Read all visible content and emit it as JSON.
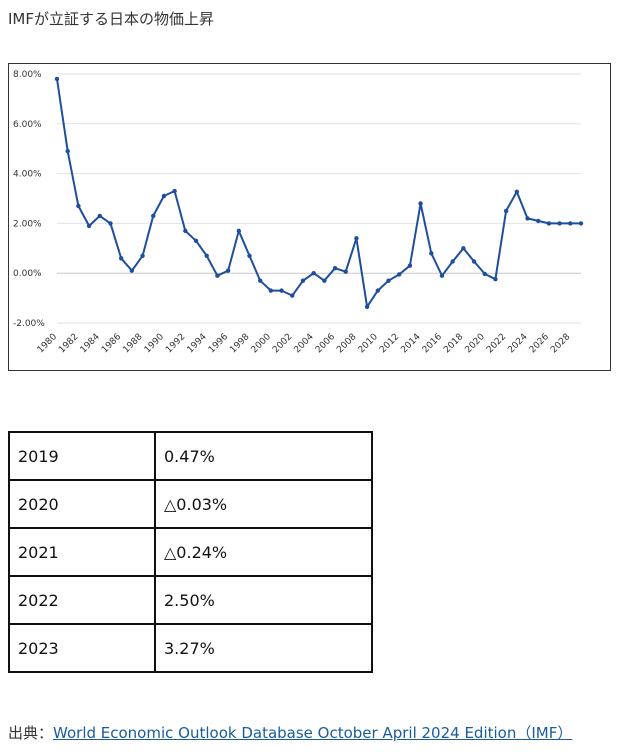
{
  "heading": "IMFが立証する日本の物価上昇",
  "chart_data": {
    "type": "line",
    "title": "",
    "xlabel": "",
    "ylabel": "",
    "ylim": [
      -2.0,
      8.0
    ],
    "y_ticks": [
      "8.00%",
      "6.00%",
      "4.00%",
      "2.00%",
      "0.00%",
      "-2.00%"
    ],
    "y_tick_values": [
      8,
      6,
      4,
      2,
      0,
      -2
    ],
    "x_tick_labels": [
      "1980",
      "1982",
      "1984",
      "1986",
      "1988",
      "1990",
      "1992",
      "1994",
      "1996",
      "1998",
      "2000",
      "2002",
      "2004",
      "2006",
      "2008",
      "2010",
      "2012",
      "2014",
      "2016",
      "2018",
      "2020",
      "2022",
      "2024",
      "2026",
      "2028"
    ],
    "grid": "horizontal",
    "line_color": "#1f4e9c",
    "series": [
      {
        "x": [
          1980,
          1981,
          1982,
          1983,
          1984,
          1985,
          1986,
          1987,
          1988,
          1989,
          1990,
          1991,
          1992,
          1993,
          1994,
          1995,
          1996,
          1997,
          1998,
          1999,
          2000,
          2001,
          2002,
          2003,
          2004,
          2005,
          2006,
          2007,
          2008,
          2009,
          2010,
          2011,
          2012,
          2013,
          2014,
          2015,
          2016,
          2017,
          2018,
          2019,
          2020,
          2021,
          2022,
          2023,
          2024,
          2025,
          2026,
          2027,
          2028,
          2029
        ],
        "values": [
          7.8,
          4.9,
          2.7,
          1.9,
          2.3,
          2.0,
          0.6,
          0.1,
          0.7,
          2.3,
          3.1,
          3.3,
          1.7,
          1.3,
          0.7,
          -0.1,
          0.1,
          1.7,
          0.7,
          -0.3,
          -0.7,
          -0.7,
          -0.9,
          -0.3,
          0.0,
          -0.3,
          0.2,
          0.06,
          1.4,
          -1.35,
          -0.7,
          -0.3,
          -0.05,
          0.3,
          2.8,
          0.8,
          -0.1,
          0.47,
          1.0,
          0.47,
          -0.03,
          -0.24,
          2.5,
          3.27,
          2.2,
          2.1,
          2.0,
          2.0,
          2.0,
          2.0
        ]
      }
    ]
  },
  "table": {
    "rows": [
      {
        "year": "2019",
        "value": "0.47%"
      },
      {
        "year": "2020",
        "value": "△0.03%"
      },
      {
        "year": "2021",
        "value": "△0.24%"
      },
      {
        "year": "2022",
        "value": "2.50%"
      },
      {
        "year": "2023",
        "value": "3.27%"
      }
    ]
  },
  "source": {
    "prefix": "出典：",
    "link_text": "World Economic Outlook Database October April 2024 Edition（IMF）"
  }
}
